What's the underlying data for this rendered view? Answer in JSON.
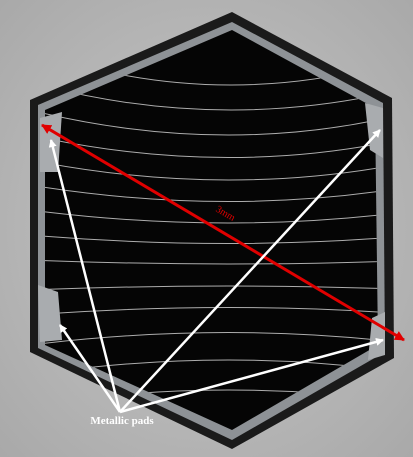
{
  "annotations": {
    "dimension": "3mm",
    "pads_label": "Metallic pads"
  }
}
